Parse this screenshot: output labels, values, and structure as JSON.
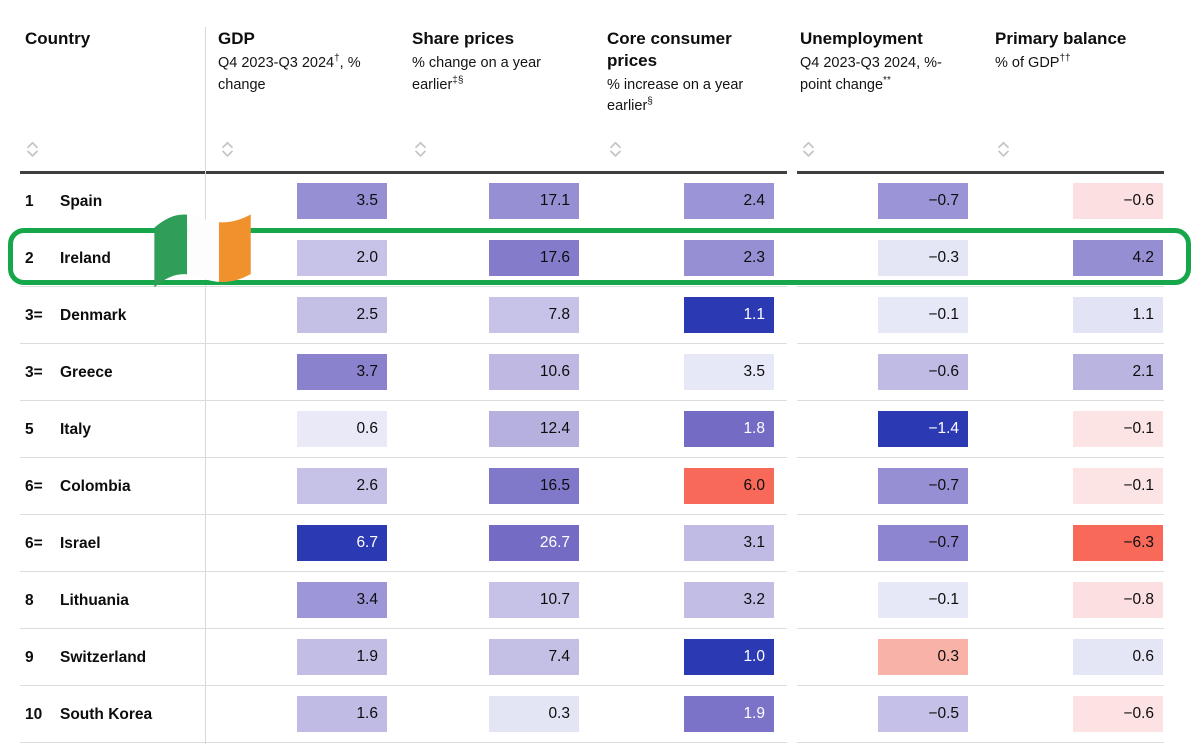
{
  "header": {
    "columns": [
      {
        "id": "country",
        "label": "Country",
        "sub_pre": "",
        "sub_sup": "",
        "sub_post": ""
      },
      {
        "id": "gdp",
        "label": "GDP",
        "sub_pre": "Q4 2023-Q3 2024",
        "sub_sup": "†",
        "sub_post": ", % change"
      },
      {
        "id": "share-prices",
        "label": "Share prices",
        "sub_pre": "% change on a year earlier",
        "sub_sup": "‡§",
        "sub_post": ""
      },
      {
        "id": "core-consumer-prices",
        "label": "Core consumer prices",
        "sub_pre": "% increase on a year earlier",
        "sub_sup": "§",
        "sub_post": ""
      },
      {
        "id": "unemployment",
        "label": "Unemployment",
        "sub_pre": "Q4 2023-Q3 2024, %-point change",
        "sub_sup": "**",
        "sub_post": ""
      },
      {
        "id": "primary-balance",
        "label": "Primary balance",
        "sub_pre": "% of GDP",
        "sub_sup": "††",
        "sub_post": ""
      }
    ]
  },
  "rows": [
    {
      "rank": "1",
      "country": "Spain",
      "cells": [
        {
          "v": "3.5",
          "bg": "#968fd4",
          "fg": "#0d0d0d"
        },
        {
          "v": "17.1",
          "bg": "#968fd4",
          "fg": "#0d0d0d"
        },
        {
          "v": "2.4",
          "bg": "#9b94d6",
          "fg": "#0d0d0d"
        },
        {
          "v": "−0.7",
          "bg": "#9b94d6",
          "fg": "#0d0d0d"
        },
        {
          "v": "−0.6",
          "bg": "#fbdfe1",
          "fg": "#0d0d0d"
        }
      ]
    },
    {
      "rank": "2",
      "country": "Ireland",
      "cells": [
        {
          "v": "2.0",
          "bg": "#c7c2e7",
          "fg": "#0d0d0d"
        },
        {
          "v": "17.6",
          "bg": "#847cca",
          "fg": "#0d0d0d"
        },
        {
          "v": "2.3",
          "bg": "#968fd4",
          "fg": "#0d0d0d"
        },
        {
          "v": "−0.3",
          "bg": "#e4e6f6",
          "fg": "#0d0d0d"
        },
        {
          "v": "4.2",
          "bg": "#958ed3",
          "fg": "#0d0d0d"
        }
      ]
    },
    {
      "rank": "3=",
      "country": "Denmark",
      "cells": [
        {
          "v": "2.5",
          "bg": "#c4bfe5",
          "fg": "#0d0d0d"
        },
        {
          "v": "7.8",
          "bg": "#c7c2e7",
          "fg": "#0d0d0d"
        },
        {
          "v": "1.1",
          "bg": "#2b3ab3",
          "fg": "#ffffff"
        },
        {
          "v": "−0.1",
          "bg": "#e6e8f7",
          "fg": "#0d0d0d"
        },
        {
          "v": "1.1",
          "bg": "#e2e4f5",
          "fg": "#0d0d0d"
        }
      ]
    },
    {
      "rank": "3=",
      "country": "Greece",
      "cells": [
        {
          "v": "3.7",
          "bg": "#8a82cd",
          "fg": "#0d0d0d"
        },
        {
          "v": "10.6",
          "bg": "#beb8e2",
          "fg": "#0d0d0d"
        },
        {
          "v": "3.5",
          "bg": "#e6e8f7",
          "fg": "#0d0d0d"
        },
        {
          "v": "−0.6",
          "bg": "#c0bbe4",
          "fg": "#0d0d0d"
        },
        {
          "v": "2.1",
          "bg": "#bab4e0",
          "fg": "#0d0d0d"
        }
      ]
    },
    {
      "rank": "5",
      "country": "Italy",
      "cells": [
        {
          "v": "0.6",
          "bg": "#eae9f8",
          "fg": "#0d0d0d"
        },
        {
          "v": "12.4",
          "bg": "#b6b0de",
          "fg": "#0d0d0d"
        },
        {
          "v": "1.8",
          "bg": "#746cc4",
          "fg": "#ffffff"
        },
        {
          "v": "−1.4",
          "bg": "#2b3ab3",
          "fg": "#ffffff"
        },
        {
          "v": "−0.1",
          "bg": "#fce4e5",
          "fg": "#0d0d0d"
        }
      ]
    },
    {
      "rank": "6=",
      "country": "Colombia",
      "cells": [
        {
          "v": "2.6",
          "bg": "#c6c1e7",
          "fg": "#0d0d0d"
        },
        {
          "v": "16.5",
          "bg": "#8079c9",
          "fg": "#0d0d0d"
        },
        {
          "v": "6.0",
          "bg": "#f8695a",
          "fg": "#0d0d0d"
        },
        {
          "v": "−0.7",
          "bg": "#968fd4",
          "fg": "#0d0d0d"
        },
        {
          "v": "−0.1",
          "bg": "#fce4e5",
          "fg": "#0d0d0d"
        }
      ]
    },
    {
      "rank": "6=",
      "country": "Israel",
      "cells": [
        {
          "v": "6.7",
          "bg": "#2b3ab3",
          "fg": "#ffffff"
        },
        {
          "v": "26.7",
          "bg": "#746cc4",
          "fg": "#ffffff"
        },
        {
          "v": "3.1",
          "bg": "#c0bbe4",
          "fg": "#0d0d0d"
        },
        {
          "v": "−0.7",
          "bg": "#8d85cf",
          "fg": "#0d0d0d"
        },
        {
          "v": "−6.3",
          "bg": "#f8695a",
          "fg": "#0d0d0d"
        }
      ]
    },
    {
      "rank": "8",
      "country": "Lithuania",
      "cells": [
        {
          "v": "3.4",
          "bg": "#9d96d7",
          "fg": "#0d0d0d"
        },
        {
          "v": "10.7",
          "bg": "#c6c1e7",
          "fg": "#0d0d0d"
        },
        {
          "v": "3.2",
          "bg": "#c2bde5",
          "fg": "#0d0d0d"
        },
        {
          "v": "−0.1",
          "bg": "#e6e8f7",
          "fg": "#0d0d0d"
        },
        {
          "v": "−0.8",
          "bg": "#fbdfe1",
          "fg": "#0d0d0d"
        }
      ]
    },
    {
      "rank": "9",
      "country": "Switzerland",
      "cells": [
        {
          "v": "1.9",
          "bg": "#c2bde5",
          "fg": "#0d0d0d"
        },
        {
          "v": "7.4",
          "bg": "#c4bfe5",
          "fg": "#0d0d0d"
        },
        {
          "v": "1.0",
          "bg": "#2b3ab3",
          "fg": "#ffffff"
        },
        {
          "v": "0.3",
          "bg": "#f9b2a8",
          "fg": "#0d0d0d"
        },
        {
          "v": "0.6",
          "bg": "#e4e6f5",
          "fg": "#0d0d0d"
        }
      ]
    },
    {
      "rank": "10",
      "country": "South Korea",
      "cells": [
        {
          "v": "1.6",
          "bg": "#c0bbe4",
          "fg": "#0d0d0d"
        },
        {
          "v": "0.3",
          "bg": "#e3e5f4",
          "fg": "#0d0d0d"
        },
        {
          "v": "1.9",
          "bg": "#7b73c8",
          "fg": "#ffffff"
        },
        {
          "v": "−0.5",
          "bg": "#c4c0e7",
          "fg": "#0d0d0d"
        },
        {
          "v": "−0.6",
          "bg": "#fce2e2",
          "fg": "#0d0d0d"
        }
      ]
    }
  ],
  "highlight": {
    "row": "Ireland",
    "border_color": "#17a74b",
    "flag": "ireland-flag",
    "flag_colors": {
      "green": "#2f9e58",
      "white": "#fdfdfd",
      "orange": "#f0912d"
    }
  },
  "colors": {
    "heat_dark_blue": "#2b3ab3",
    "heat_medium_purple": "#968fd4",
    "heat_light_purple": "#c7c2e7",
    "heat_pale_lavender": "#e6e8f7",
    "heat_pale_pink": "#fbdfe1",
    "heat_salmon": "#f9b2a8",
    "heat_red": "#f8695a",
    "rule_dark": "#3f3f3f",
    "rule_light": "#dcdcdc",
    "sort_icon": "#c6c6c6"
  },
  "chart_data": {
    "type": "table",
    "title": "",
    "columns": [
      "Country",
      "GDP, Q4 2023-Q3 2024†, % change",
      "Share prices, % change on a year earlier‡§",
      "Core consumer prices, % increase on a year earlier§",
      "Unemployment, Q4 2023-Q3 2024, %-point change**",
      "Primary balance, % of GDP††"
    ],
    "rows": [
      {
        "rank": "1",
        "country": "Spain",
        "gdp": 3.5,
        "share_prices": 17.1,
        "core_consumer_prices": 2.4,
        "unemployment": -0.7,
        "primary_balance": -0.6
      },
      {
        "rank": "2",
        "country": "Ireland",
        "gdp": 2.0,
        "share_prices": 17.6,
        "core_consumer_prices": 2.3,
        "unemployment": -0.3,
        "primary_balance": 4.2
      },
      {
        "rank": "3=",
        "country": "Denmark",
        "gdp": 2.5,
        "share_prices": 7.8,
        "core_consumer_prices": 1.1,
        "unemployment": -0.1,
        "primary_balance": 1.1
      },
      {
        "rank": "3=",
        "country": "Greece",
        "gdp": 3.7,
        "share_prices": 10.6,
        "core_consumer_prices": 3.5,
        "unemployment": -0.6,
        "primary_balance": 2.1
      },
      {
        "rank": "5",
        "country": "Italy",
        "gdp": 0.6,
        "share_prices": 12.4,
        "core_consumer_prices": 1.8,
        "unemployment": -1.4,
        "primary_balance": -0.1
      },
      {
        "rank": "6=",
        "country": "Colombia",
        "gdp": 2.6,
        "share_prices": 16.5,
        "core_consumer_prices": 6.0,
        "unemployment": -0.7,
        "primary_balance": -0.1
      },
      {
        "rank": "6=",
        "country": "Israel",
        "gdp": 6.7,
        "share_prices": 26.7,
        "core_consumer_prices": 3.1,
        "unemployment": -0.7,
        "primary_balance": -6.3
      },
      {
        "rank": "8",
        "country": "Lithuania",
        "gdp": 3.4,
        "share_prices": 10.7,
        "core_consumer_prices": 3.2,
        "unemployment": -0.1,
        "primary_balance": -0.8
      },
      {
        "rank": "9",
        "country": "Switzerland",
        "gdp": 1.9,
        "share_prices": 7.4,
        "core_consumer_prices": 1.0,
        "unemployment": 0.3,
        "primary_balance": 0.6
      },
      {
        "rank": "10",
        "country": "South Korea",
        "gdp": 1.6,
        "share_prices": 0.3,
        "core_consumer_prices": 1.9,
        "unemployment": -0.5,
        "primary_balance": -0.6
      }
    ],
    "highlighted_row": "Ireland",
    "legend_position": "none",
    "grid": "row-separators"
  }
}
